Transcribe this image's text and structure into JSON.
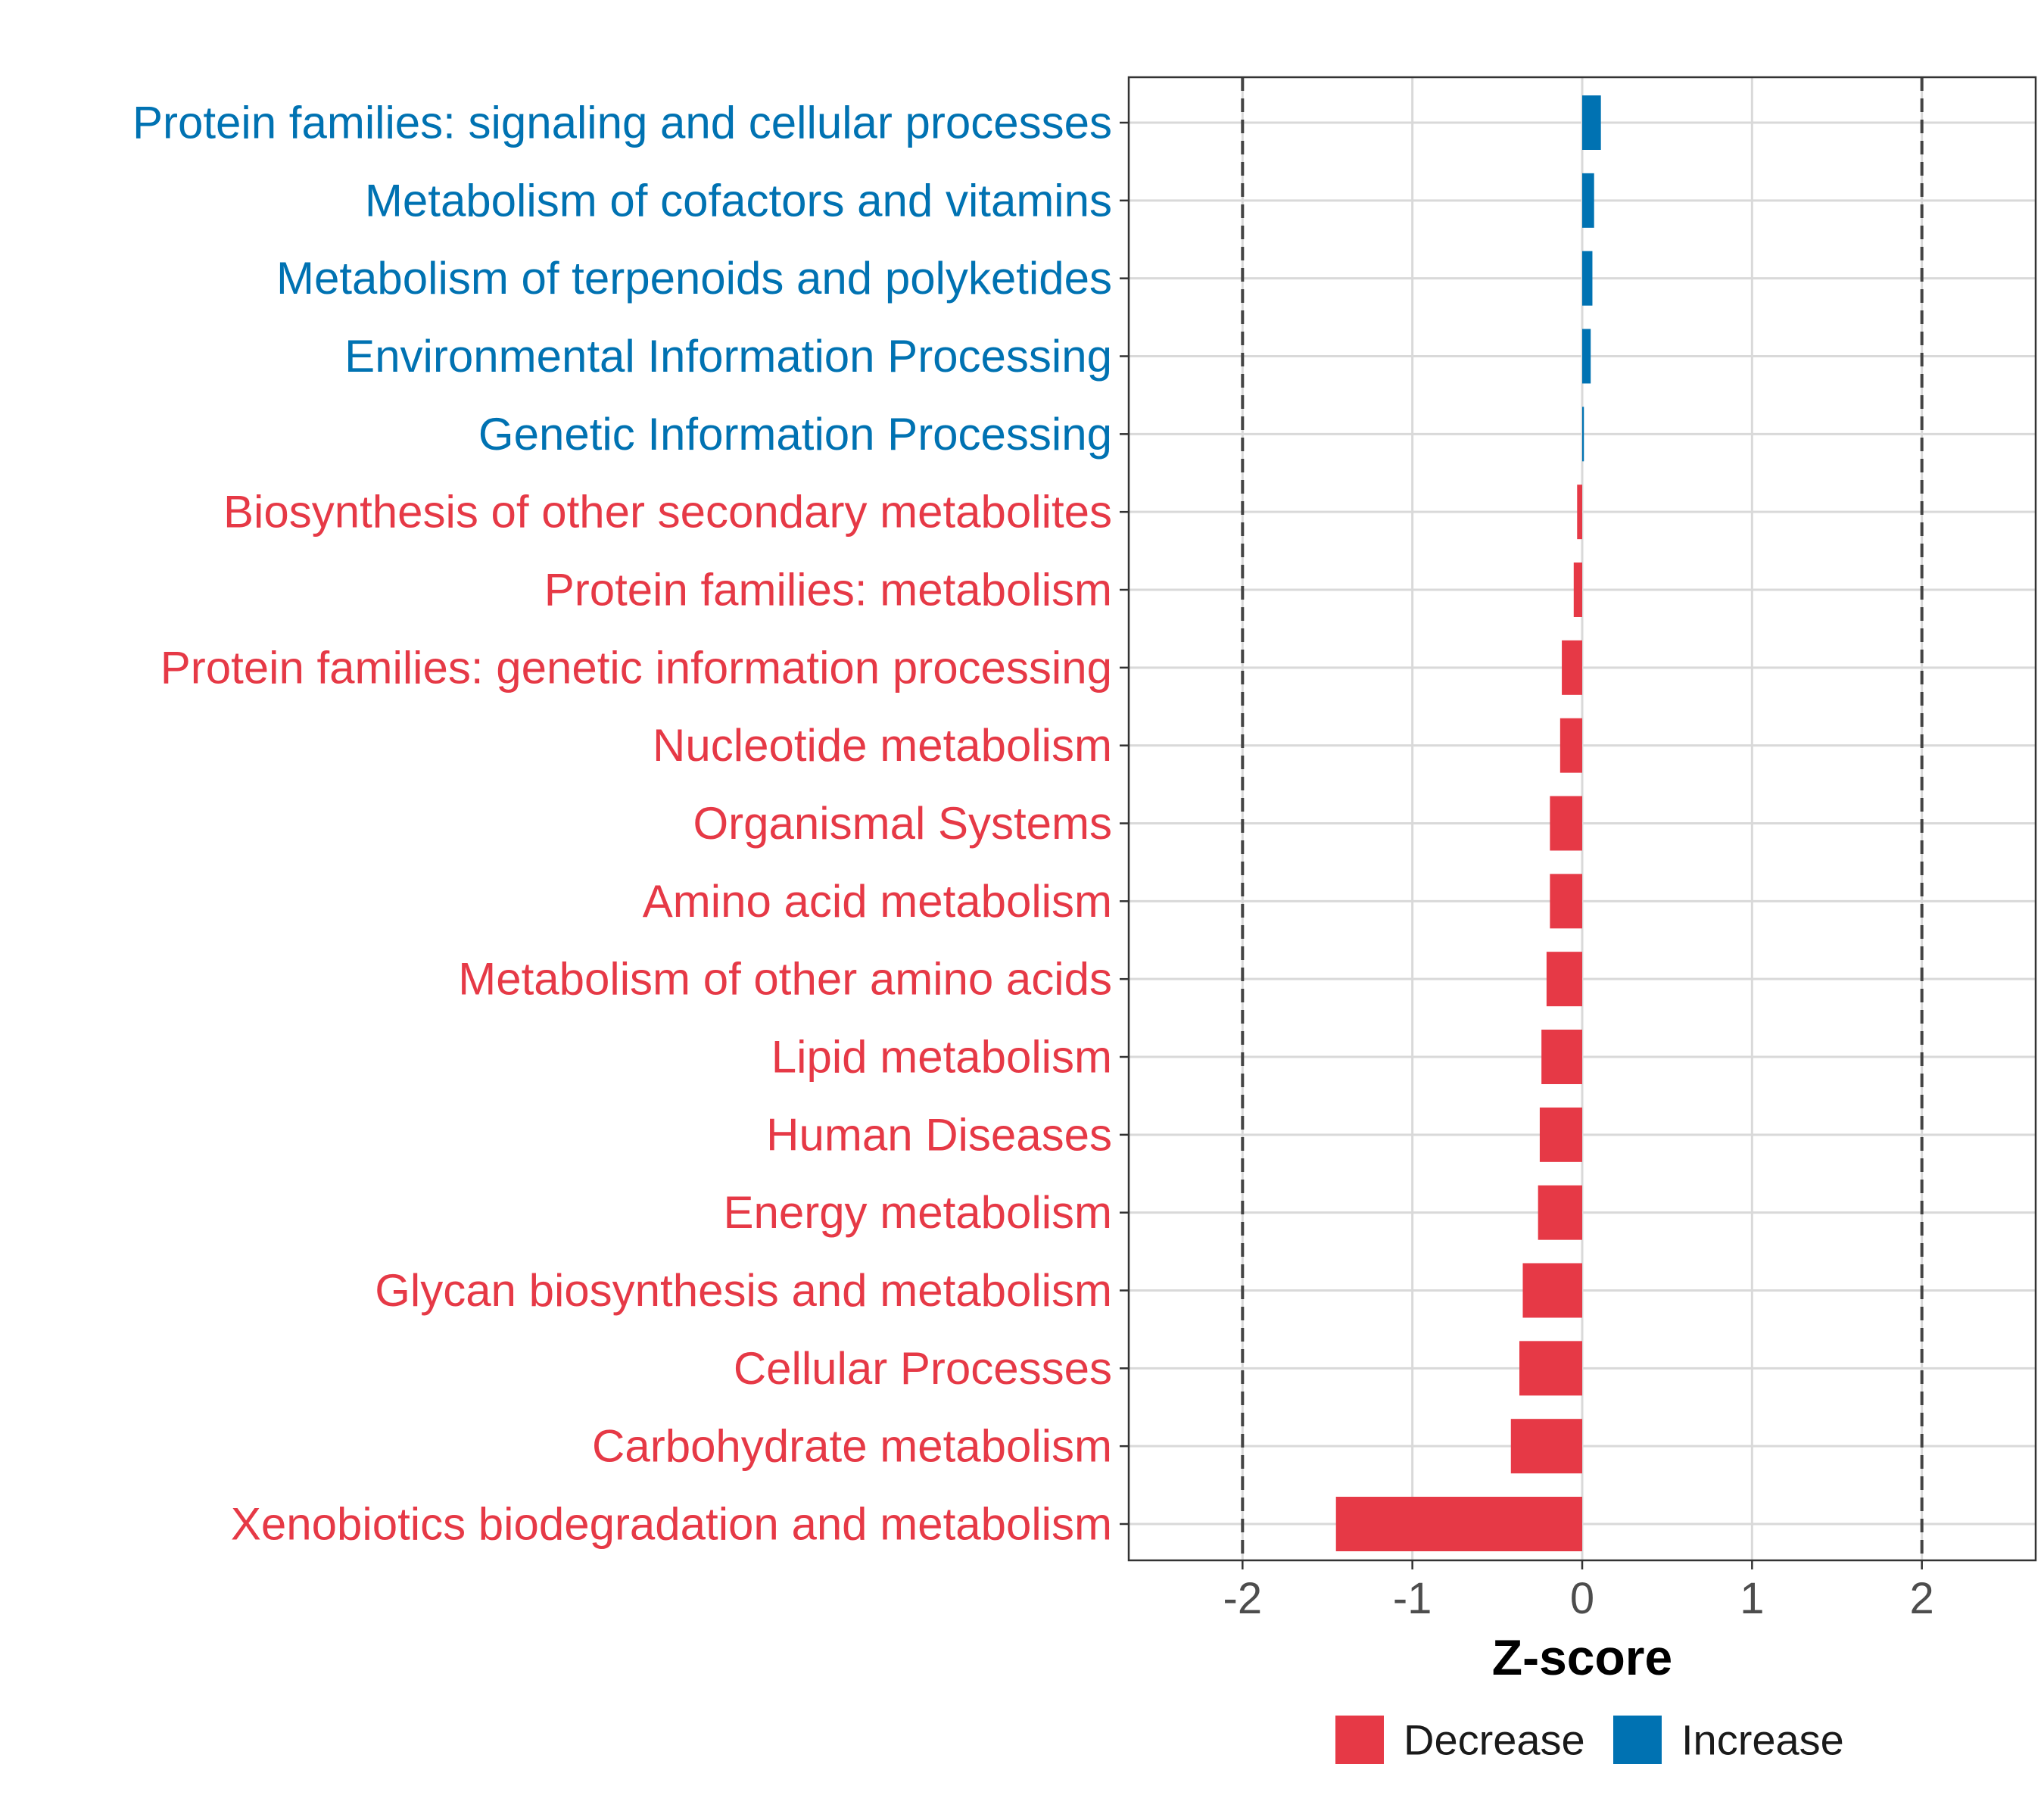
{
  "chart_data": {
    "type": "bar",
    "orientation": "horizontal",
    "xlabel": "Z-score",
    "ylabel": "",
    "xlim": [
      -2.67,
      2.67
    ],
    "xticks": [
      -2,
      -1,
      0,
      1,
      2
    ],
    "reference_lines": [
      -2,
      2
    ],
    "grid": true,
    "legend_position": "bottom",
    "colors": {
      "Decrease": "#e63946",
      "Increase": "#0072b2"
    },
    "legend": [
      {
        "name": "Decrease",
        "color": "#e63946"
      },
      {
        "name": "Increase",
        "color": "#0072b2"
      }
    ],
    "bars": [
      {
        "category": "Protein families: signaling and cellular processes",
        "value": 0.11,
        "group": "Increase"
      },
      {
        "category": "Metabolism of cofactors and vitamins",
        "value": 0.07,
        "group": "Increase"
      },
      {
        "category": "Metabolism of terpenoids and polyketides",
        "value": 0.06,
        "group": "Increase"
      },
      {
        "category": "Environmental Information Processing",
        "value": 0.05,
        "group": "Increase"
      },
      {
        "category": "Genetic Information Processing",
        "value": 0.01,
        "group": "Increase"
      },
      {
        "category": "Biosynthesis of other secondary metabolites",
        "value": -0.03,
        "group": "Decrease"
      },
      {
        "category": "Protein families: metabolism",
        "value": -0.05,
        "group": "Decrease"
      },
      {
        "category": "Protein families: genetic information processing",
        "value": -0.12,
        "group": "Decrease"
      },
      {
        "category": "Nucleotide metabolism",
        "value": -0.13,
        "group": "Decrease"
      },
      {
        "category": "Organismal Systems",
        "value": -0.19,
        "group": "Decrease"
      },
      {
        "category": "Amino acid metabolism",
        "value": -0.19,
        "group": "Decrease"
      },
      {
        "category": "Metabolism of other amino acids",
        "value": -0.21,
        "group": "Decrease"
      },
      {
        "category": "Lipid metabolism",
        "value": -0.24,
        "group": "Decrease"
      },
      {
        "category": "Human Diseases",
        "value": -0.25,
        "group": "Decrease"
      },
      {
        "category": "Energy metabolism",
        "value": -0.26,
        "group": "Decrease"
      },
      {
        "category": "Glycan biosynthesis and metabolism",
        "value": -0.35,
        "group": "Decrease"
      },
      {
        "category": "Cellular Processes",
        "value": -0.37,
        "group": "Decrease"
      },
      {
        "category": "Carbohydrate metabolism",
        "value": -0.42,
        "group": "Decrease"
      },
      {
        "category": "Xenobiotics biodegradation and metabolism",
        "value": -1.45,
        "group": "Decrease"
      }
    ]
  }
}
